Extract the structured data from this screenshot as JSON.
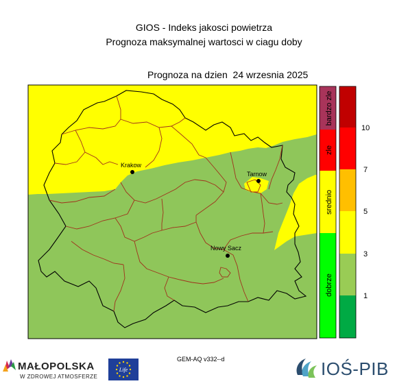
{
  "header": {
    "title": "GIOS - Indeks jakosci powietrza",
    "subtitle": "Prognoza maksymalnej wartosci w ciagu doby",
    "forecast_date": "Prognoza na dzien  24 wrzesnia 2025"
  },
  "cities": [
    {
      "name": "Krakow"
    },
    {
      "name": "Tarnow"
    },
    {
      "name": "Nowy Sacz"
    }
  ],
  "legend": {
    "categories": [
      {
        "label": "bardzo zle",
        "color": "#a8345a"
      },
      {
        "label": "zle",
        "color": "#ff0000"
      },
      {
        "label": "srednio",
        "color": "#ffff00"
      },
      {
        "label": "dobrze",
        "color": "#00ff00"
      }
    ],
    "scale_colors": [
      "#c00000",
      "#ff0000",
      "#ff6600",
      "#ffbf00",
      "#ffff00",
      "#99cc55",
      "#00aa44"
    ],
    "scale_labels": [
      "10",
      "7",
      "5",
      "3",
      "1"
    ]
  },
  "map_colors": {
    "good": "#8fc65a",
    "moderate": "#ffff00",
    "border": "#000000",
    "district_border": "#a0301c"
  },
  "footer": {
    "model": "GEM-AQ v332--d",
    "partner_name": "MAŁOPOLSKA",
    "partner_tagline": "W ZDROWEJ ATMOSFERZE",
    "eu_icon": "eu-flag-icon",
    "eu_text": "Life",
    "institute": "IOŚ-PIB"
  }
}
